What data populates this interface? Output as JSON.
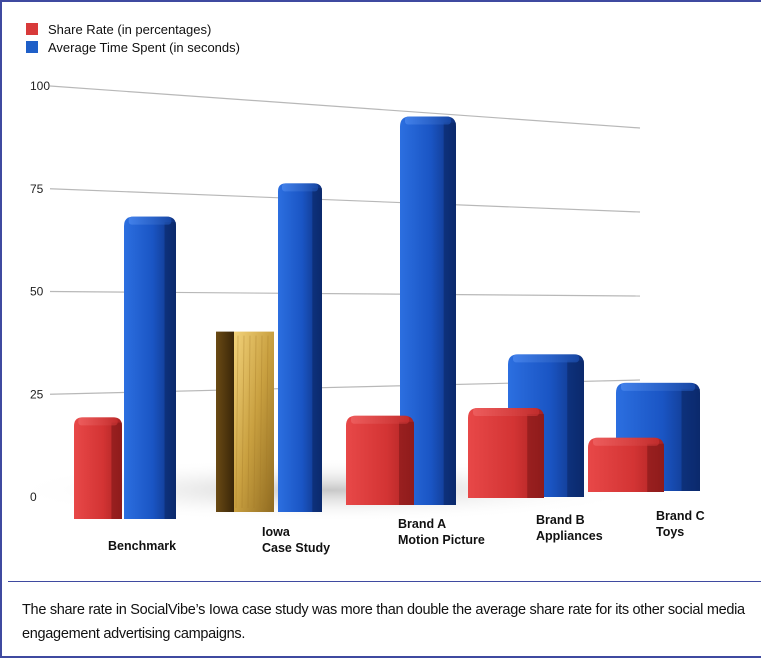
{
  "chart_data": {
    "type": "bar",
    "categories": [
      "Benchmark",
      "Iowa\nCase Study",
      "Brand A\nMotion Picture",
      "Brand B\nAppliances",
      "Brand C\nToys"
    ],
    "series": [
      {
        "name": "Share Rate (in percentages)",
        "values": [
          19,
          40,
          17,
          18,
          8
        ],
        "color": "#d83a3a"
      },
      {
        "name": "Average Time Spent (in seconds)",
        "values": [
          69,
          79,
          99,
          33,
          24
        ],
        "color": "#1f5fc8"
      }
    ],
    "highlight": {
      "series": 0,
      "category": 1,
      "color": "#c8a23c"
    },
    "ylim": [
      0,
      100
    ],
    "yticks": [
      0,
      25,
      50,
      75,
      100
    ],
    "grid": true,
    "legend": "top-left"
  },
  "caption": {
    "line1": "The share rate in SocialVibe’s Iowa case study was more than double the average share rate for its other social media",
    "line2": "engagement advertising campaigns."
  }
}
